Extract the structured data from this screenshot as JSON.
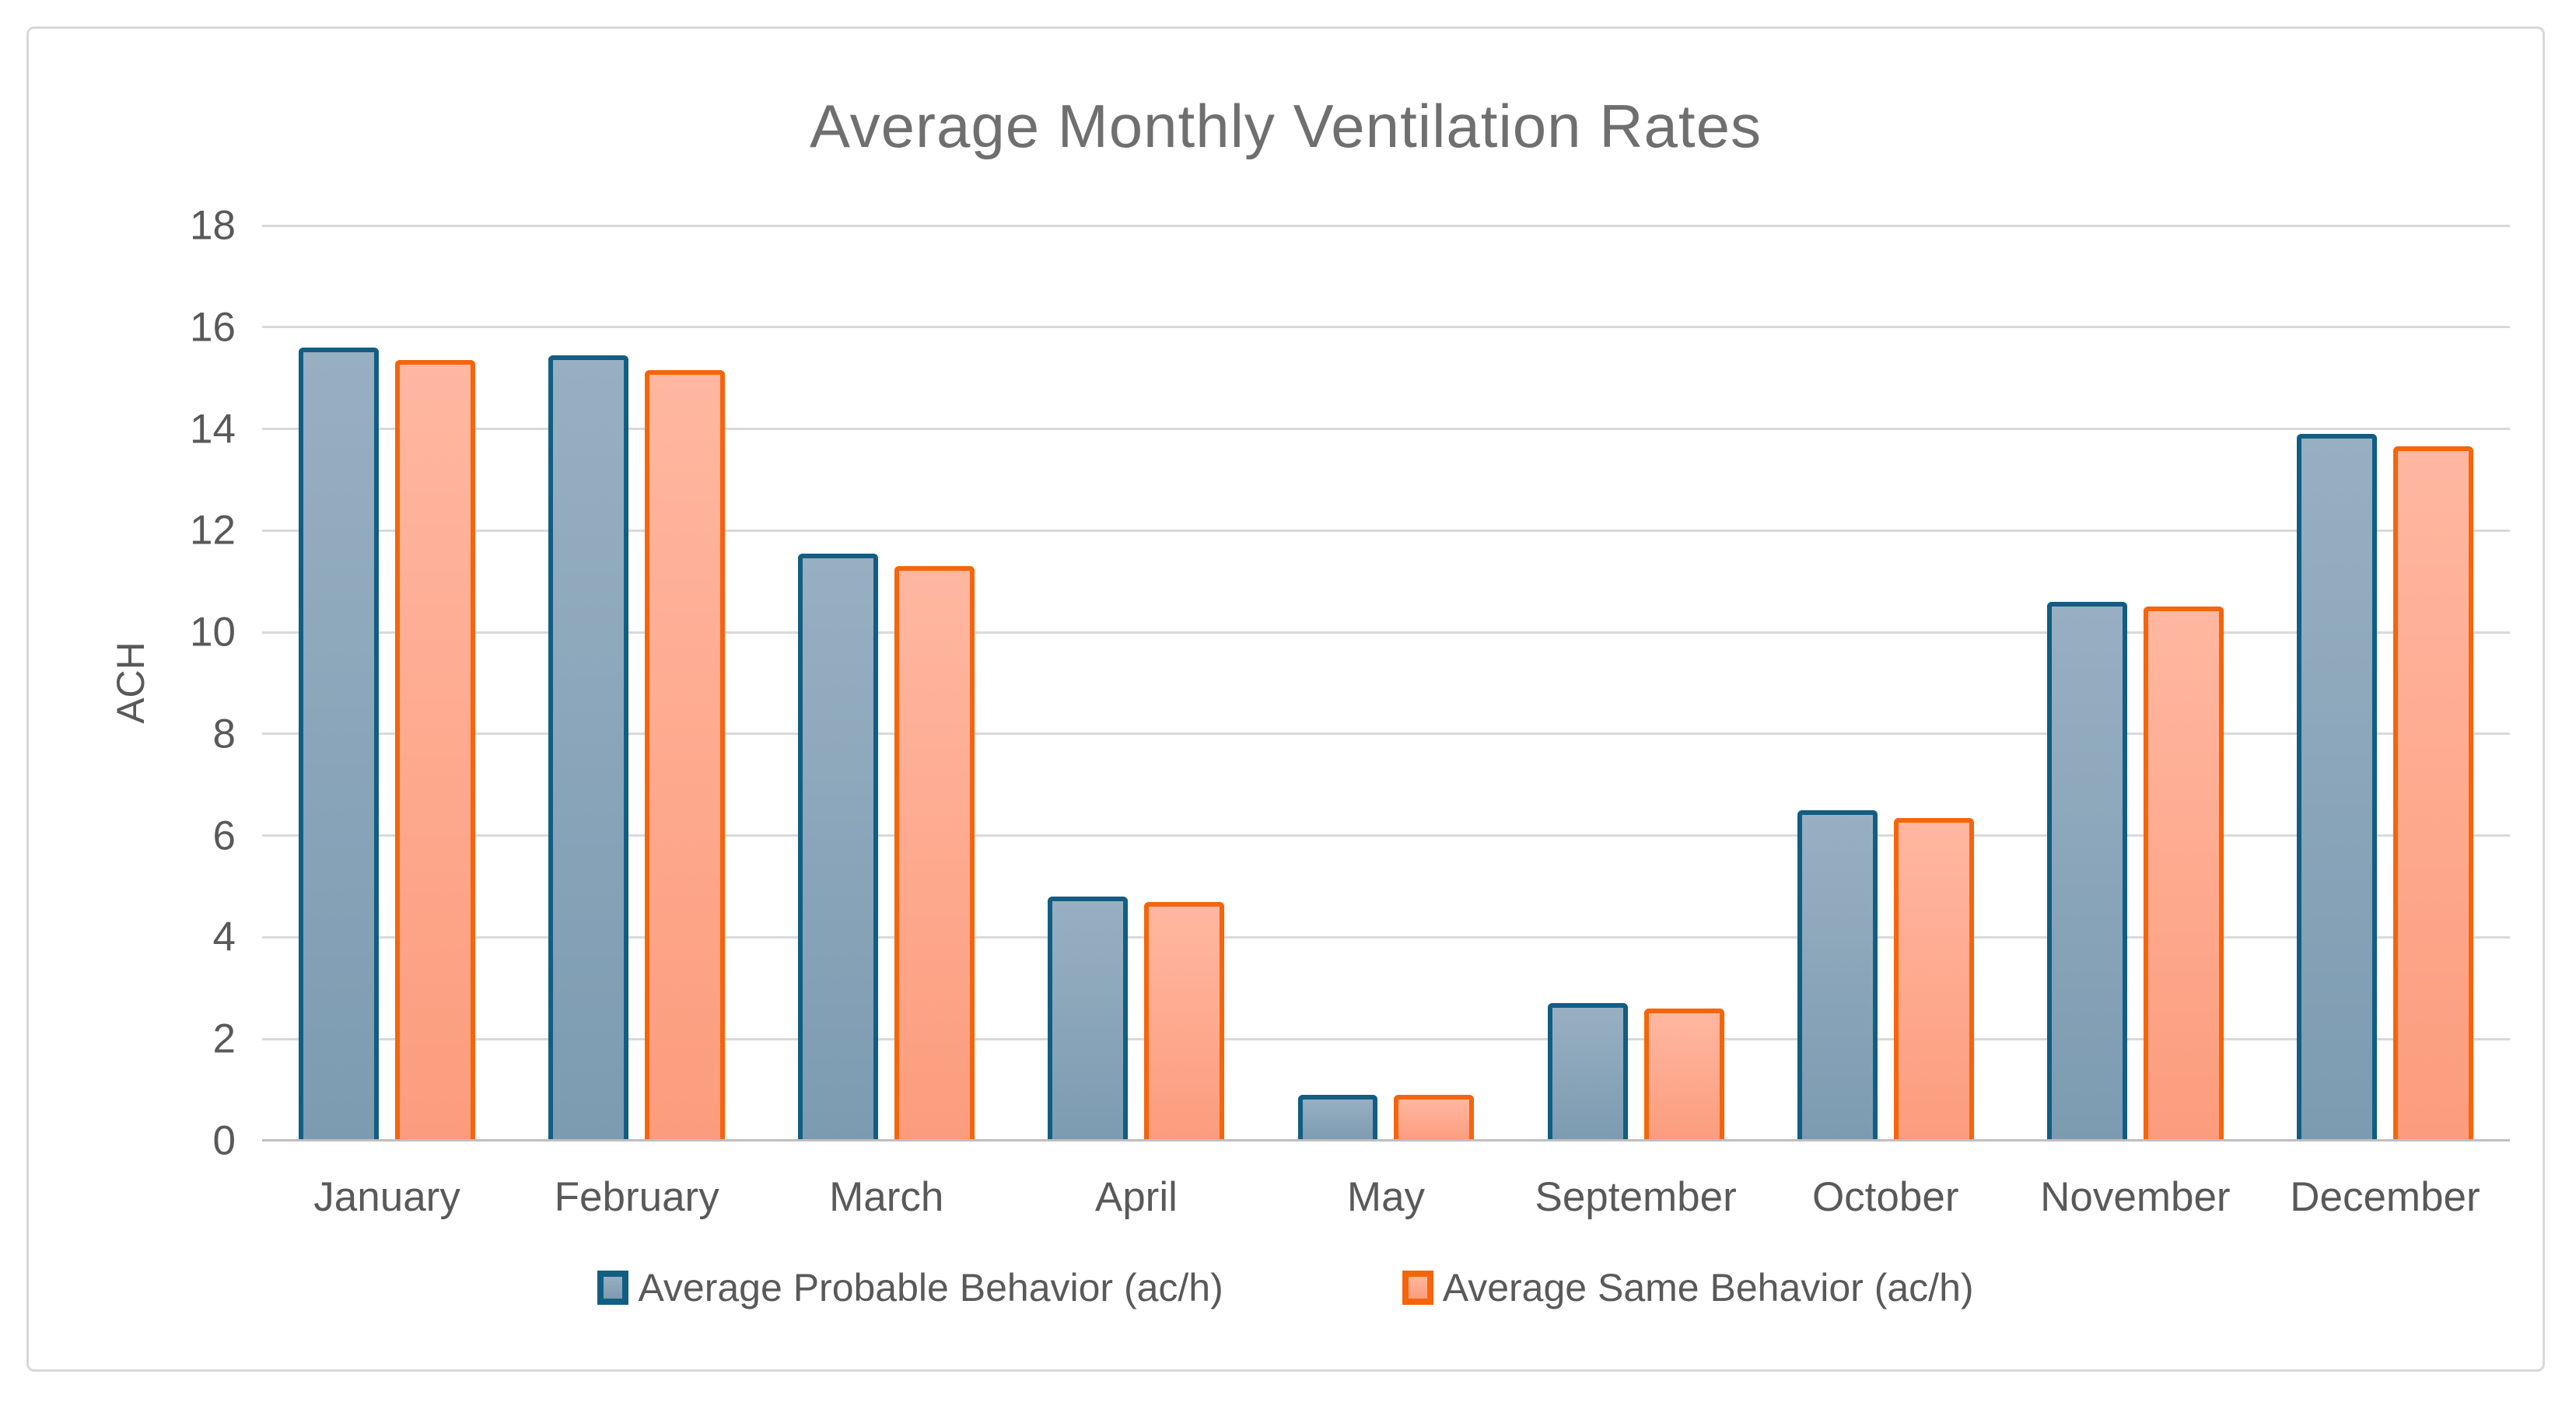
{
  "chart_data": {
    "type": "bar",
    "title": "Average Monthly Ventilation Rates",
    "ylabel": "ACH",
    "xlabel": "",
    "ylim": [
      0,
      18
    ],
    "ytick_step": 2,
    "grid": true,
    "legend_position": "bottom",
    "categories": [
      "January",
      "February",
      "March",
      "April",
      "May",
      "September",
      "October",
      "November",
      "December"
    ],
    "series": [
      {
        "name": "Average Probable Behavior (ac/h)",
        "key": "probable",
        "values": [
          15.6,
          15.45,
          11.55,
          4.8,
          0.9,
          2.7,
          6.5,
          10.6,
          13.9
        ],
        "border_color": "#115E82",
        "fill_top": "#98AFC2",
        "fill_bottom": "#7C9BB1"
      },
      {
        "name": "Average Same Behavior (ac/h)",
        "key": "same",
        "values": [
          15.35,
          15.15,
          11.3,
          4.7,
          0.9,
          2.6,
          6.35,
          10.5,
          13.65
        ],
        "border_color": "#F4650C",
        "fill_top": "#FFB7A1",
        "fill_bottom": "#FC9C7D"
      }
    ]
  },
  "colors": {
    "gridline": "#D9D9D9",
    "axis_line": "#BFBFBF",
    "tick_label": "#595959",
    "title": "#6F6F6F",
    "frame_border": "#D8D8D8",
    "background": "#FFFFFF"
  }
}
